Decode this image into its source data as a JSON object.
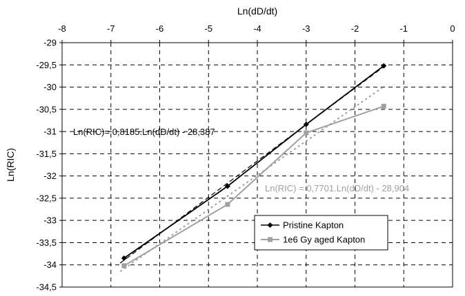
{
  "chart_data": {
    "type": "line",
    "title": "",
    "xlabel": "Ln(dD/dt)",
    "ylabel": "Ln(RIC)",
    "x_axis_position": "top",
    "xlim": [
      -8,
      0
    ],
    "ylim": [
      -34.5,
      -29
    ],
    "x_ticks": [
      -8,
      -7,
      -6,
      -5,
      -4,
      -3,
      -2,
      -1,
      0
    ],
    "y_ticks": [
      -29,
      -29.5,
      -30,
      -30.5,
      -31,
      -31.5,
      -32,
      -32.5,
      -33,
      -33.5,
      -34,
      -34.5
    ],
    "x_tick_labels": [
      "-8",
      "-7",
      "-6",
      "-5",
      "-4",
      "-3",
      "-2",
      "-1",
      "0"
    ],
    "y_tick_labels": [
      "-29",
      "-29,5",
      "-30",
      "-30,5",
      "-31",
      "-31,5",
      "-32",
      "-32,5",
      "-33",
      "-33,5",
      "-34",
      "-34,5"
    ],
    "grid": "dashed",
    "legend_position": "lower-right",
    "series": [
      {
        "name": "Pristine Kapton",
        "color": "#000000",
        "marker": "diamond",
        "x": [
          -6.73,
          -4.61,
          -3.0,
          -1.41
        ],
        "y": [
          -33.85,
          -32.23,
          -30.84,
          -29.52
        ]
      },
      {
        "name": "1e6 Gy aged Kapton",
        "color": "#a0a0a0",
        "marker": "square",
        "x": [
          -6.73,
          -4.61,
          -3.0,
          -1.41
        ],
        "y": [
          -34.02,
          -32.64,
          -31.03,
          -30.43
        ]
      }
    ],
    "trendlines": [
      {
        "series": "Pristine Kapton",
        "equation": "Ln(RIC)= 0,8185.Ln(dD/dt) - 28,387",
        "slope": 0.8185,
        "intercept": -28.387,
        "color": "#000000",
        "style": "dashed"
      },
      {
        "series": "1e6 Gy aged Kapton",
        "equation": "Ln(RIC) = 0,7701.Ln(dD/dt) - 28,904",
        "slope": 0.7701,
        "intercept": -28.904,
        "color": "#a0a0a0",
        "style": "dotted"
      }
    ]
  }
}
